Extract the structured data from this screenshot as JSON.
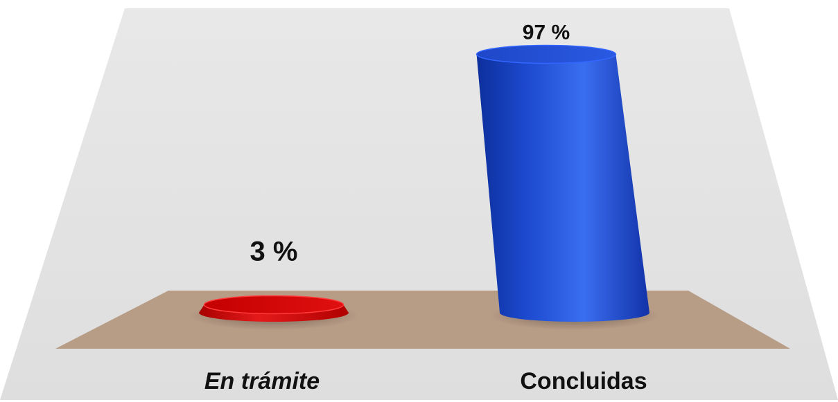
{
  "chart_data": {
    "type": "bar",
    "categories": [
      "En trámite",
      "Concluidas"
    ],
    "values": [
      3,
      97
    ],
    "value_labels": [
      "3 %",
      "97 %"
    ],
    "series": [
      {
        "values": [
          3,
          97
        ],
        "colors": [
          "#e01010",
          "#1f4fd6"
        ]
      }
    ],
    "ylim": [
      0,
      100
    ],
    "grid": false,
    "legend": "none",
    "style": "3d-cylinder",
    "colors": {
      "wall": "#e3e3e3",
      "floor": "#b79c86",
      "bar_red": "#e01010",
      "bar_blue": "#1f4fd6"
    }
  }
}
